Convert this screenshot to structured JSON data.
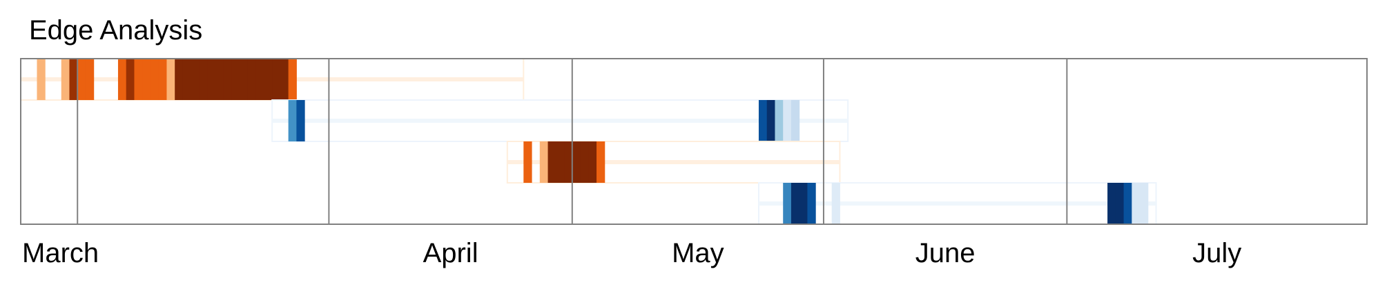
{
  "chart_data": {
    "type": "heatmap",
    "title": "Edge Analysis",
    "xlabel": "",
    "ylabel": "",
    "x_axis": {
      "type": "date",
      "range": [
        "2025-02-22",
        "2025-08-07"
      ],
      "month_ticks": [
        {
          "label": "March",
          "date": "2025-03-01"
        },
        {
          "label": "April",
          "date": "2025-04-01"
        },
        {
          "label": "May",
          "date": "2025-05-01"
        },
        {
          "label": "June",
          "date": "2025-06-01"
        },
        {
          "label": "July",
          "date": "2025-07-01"
        }
      ]
    },
    "grid": {
      "vertical_month_lines": true,
      "horizontal": false
    },
    "legend": "none",
    "colormaps": {
      "orange": "Oranges",
      "blue": "Blues"
    },
    "rows": [
      {
        "row": 0,
        "colormap": "orange",
        "window": [
          "2025-02-22",
          "2025-04-25"
        ],
        "cells": [
          {
            "date": "2025-02-24",
            "intensity": 0.35
          },
          {
            "date": "2025-02-27",
            "intensity": 0.35
          },
          {
            "date": "2025-02-28",
            "intensity": 0.9
          },
          {
            "date": "2025-03-01",
            "intensity": 0.6
          },
          {
            "date": "2025-03-02",
            "intensity": 0.6
          },
          {
            "date": "2025-03-06",
            "intensity": 0.6
          },
          {
            "date": "2025-03-07",
            "intensity": 0.9
          },
          {
            "date": "2025-03-08",
            "intensity": 0.6
          },
          {
            "date": "2025-03-09",
            "intensity": 0.6
          },
          {
            "date": "2025-03-10",
            "intensity": 0.6
          },
          {
            "date": "2025-03-11",
            "intensity": 0.6
          },
          {
            "date": "2025-03-12",
            "intensity": 0.35
          },
          {
            "date": "2025-03-13",
            "intensity": 1.0
          },
          {
            "date": "2025-03-14",
            "intensity": 1.0
          },
          {
            "date": "2025-03-15",
            "intensity": 1.0
          },
          {
            "date": "2025-03-16",
            "intensity": 1.0
          },
          {
            "date": "2025-03-17",
            "intensity": 1.0
          },
          {
            "date": "2025-03-18",
            "intensity": 1.0
          },
          {
            "date": "2025-03-19",
            "intensity": 1.0
          },
          {
            "date": "2025-03-20",
            "intensity": 1.0
          },
          {
            "date": "2025-03-21",
            "intensity": 1.0
          },
          {
            "date": "2025-03-22",
            "intensity": 1.0
          },
          {
            "date": "2025-03-23",
            "intensity": 1.0
          },
          {
            "date": "2025-03-24",
            "intensity": 1.0
          },
          {
            "date": "2025-03-25",
            "intensity": 1.0
          },
          {
            "date": "2025-03-26",
            "intensity": 1.0
          },
          {
            "date": "2025-03-27",
            "intensity": 0.6
          }
        ]
      },
      {
        "row": 1,
        "colormap": "blue",
        "window": [
          "2025-03-25",
          "2025-06-04"
        ],
        "cells": [
          {
            "date": "2025-03-27",
            "intensity": 0.6
          },
          {
            "date": "2025-03-28",
            "intensity": 0.85
          },
          {
            "date": "2025-05-24",
            "intensity": 0.85
          },
          {
            "date": "2025-05-25",
            "intensity": 1.0
          },
          {
            "date": "2025-05-26",
            "intensity": 0.35
          },
          {
            "date": "2025-05-27",
            "intensity": 0.15
          },
          {
            "date": "2025-05-28",
            "intensity": 0.25
          }
        ]
      },
      {
        "row": 2,
        "colormap": "orange",
        "window": [
          "2025-04-23",
          "2025-06-03"
        ],
        "cells": [
          {
            "date": "2025-04-25",
            "intensity": 0.6
          },
          {
            "date": "2025-04-27",
            "intensity": 0.35
          },
          {
            "date": "2025-04-28",
            "intensity": 1.0
          },
          {
            "date": "2025-04-29",
            "intensity": 1.0
          },
          {
            "date": "2025-04-30",
            "intensity": 1.0
          },
          {
            "date": "2025-05-01",
            "intensity": 1.0
          },
          {
            "date": "2025-05-02",
            "intensity": 1.0
          },
          {
            "date": "2025-05-03",
            "intensity": 1.0
          },
          {
            "date": "2025-05-04",
            "intensity": 0.6
          }
        ]
      },
      {
        "row": 3,
        "colormap": "blue",
        "window": [
          "2025-05-24",
          "2025-07-12"
        ],
        "cells": [
          {
            "date": "2025-05-27",
            "intensity": 0.65
          },
          {
            "date": "2025-05-28",
            "intensity": 1.0
          },
          {
            "date": "2025-05-29",
            "intensity": 1.0
          },
          {
            "date": "2025-05-30",
            "intensity": 0.85
          },
          {
            "date": "2025-06-02",
            "intensity": 0.12
          },
          {
            "date": "2025-07-06",
            "intensity": 1.0
          },
          {
            "date": "2025-07-07",
            "intensity": 1.0
          },
          {
            "date": "2025-07-08",
            "intensity": 0.85
          },
          {
            "date": "2025-07-09",
            "intensity": 0.15
          },
          {
            "date": "2025-07-10",
            "intensity": 0.15
          }
        ]
      }
    ]
  }
}
